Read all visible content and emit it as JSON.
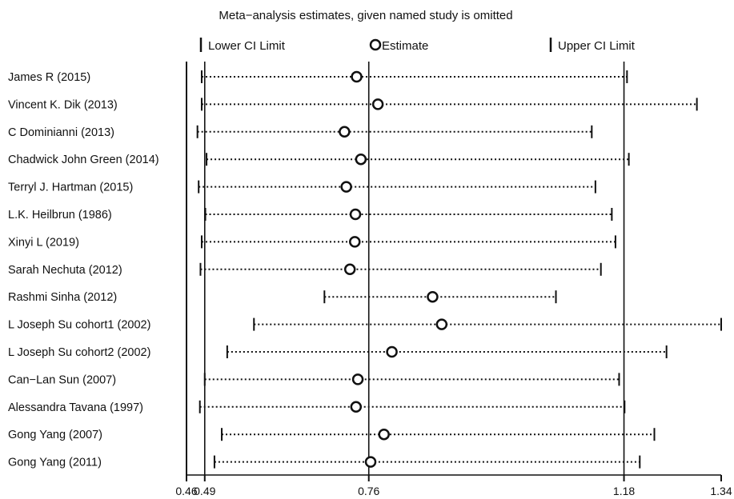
{
  "chart_data": {
    "type": "forest",
    "title": "Meta−analysis estimates, given named study is omitted",
    "legend": {
      "lower": "Lower CI Limit",
      "estimate": "Estimate",
      "upper": "Upper CI Limit",
      "placement": "top"
    },
    "x_ticks": [
      0.46,
      0.49,
      0.76,
      1.18,
      1.34
    ],
    "x_tick_labels": [
      "0.46",
      "0.49",
      "0.76",
      "1.18",
      "1.34"
    ],
    "reference_lines": [
      0.49,
      0.76,
      1.18
    ],
    "xlim": [
      0.46,
      1.34
    ],
    "studies": [
      {
        "label": "James R (2015)",
        "lower": 0.485,
        "estimate": 0.74,
        "upper": 1.185
      },
      {
        "label": "Vincent K. Dik  (2013)",
        "lower": 0.485,
        "estimate": 0.775,
        "upper": 1.3
      },
      {
        "label": "C Dominianni (2013)",
        "lower": 0.478,
        "estimate": 0.72,
        "upper": 1.127
      },
      {
        "label": "Chadwick John Green (2014)",
        "lower": 0.493,
        "estimate": 0.747,
        "upper": 1.188
      },
      {
        "label": "Terryl J. Hartman (2015)",
        "lower": 0.48,
        "estimate": 0.723,
        "upper": 1.133
      },
      {
        "label": "L.K. Heilbrun (1986)",
        "lower": 0.491,
        "estimate": 0.738,
        "upper": 1.16
      },
      {
        "label": "Xinyi L (2019)",
        "lower": 0.485,
        "estimate": 0.737,
        "upper": 1.166
      },
      {
        "label": "Sarah Nechuta (2012)",
        "lower": 0.483,
        "estimate": 0.729,
        "upper": 1.142
      },
      {
        "label": "Rashmi Sinha (2012)",
        "lower": 0.687,
        "estimate": 0.865,
        "upper": 1.068
      },
      {
        "label": "L Joseph Su  cohort1 (2002)",
        "lower": 0.571,
        "estimate": 0.88,
        "upper": 1.34
      },
      {
        "label": "L Joseph Su  cohort2 (2002)",
        "lower": 0.527,
        "estimate": 0.798,
        "upper": 1.25
      },
      {
        "label": "Can−Lan Sun (2007)",
        "lower": 0.49,
        "estimate": 0.742,
        "upper": 1.172
      },
      {
        "label": "Alessandra Tavana (1997)",
        "lower": 0.482,
        "estimate": 0.739,
        "upper": 1.181
      },
      {
        "label": "Gong Yang (2007)",
        "lower": 0.518,
        "estimate": 0.785,
        "upper": 1.23
      },
      {
        "label": "Gong Yang (2011)",
        "lower": 0.506,
        "estimate": 0.763,
        "upper": 1.206
      }
    ]
  }
}
